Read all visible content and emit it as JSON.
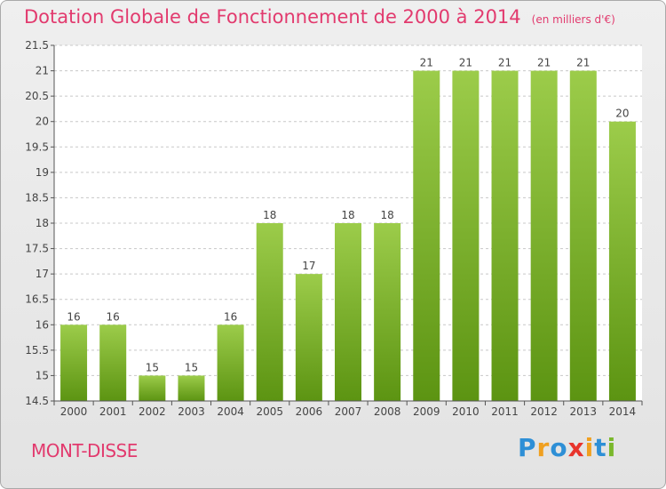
{
  "chart_data": {
    "type": "bar",
    "title": "Dotation Globale de Fonctionnement de 2000 à 2014",
    "subtitle": "(en milliers d'€)",
    "categories": [
      "2000",
      "2001",
      "2002",
      "2003",
      "2004",
      "2005",
      "2006",
      "2007",
      "2008",
      "2009",
      "2010",
      "2011",
      "2012",
      "2013",
      "2014"
    ],
    "values": [
      16,
      16,
      15,
      15,
      16,
      18,
      17,
      18,
      18,
      21,
      21,
      21,
      21,
      21,
      20
    ],
    "data_labels": [
      "16",
      "16",
      "15",
      "15",
      "16",
      "18",
      "17",
      "18",
      "18",
      "21",
      "21",
      "21",
      "21",
      "21",
      "20"
    ],
    "ylim": [
      14.5,
      21.5
    ],
    "yticks": [
      14.5,
      15,
      15.5,
      16,
      16.5,
      17,
      17.5,
      18,
      18.5,
      19,
      19.5,
      20,
      20.5,
      21,
      21.5
    ],
    "ytick_labels": [
      "14.5",
      "15",
      "15.5",
      "16",
      "16.5",
      "17",
      "17.5",
      "18",
      "18.5",
      "19",
      "19.5",
      "20",
      "20.5",
      "21",
      "21.5"
    ],
    "xlabel": "",
    "ylabel": "",
    "grid": "horizontal dashed",
    "bar_color_top": "#9ccc4a",
    "bar_color_bottom": "#5c9412"
  },
  "footer": {
    "commune": "MONT-DISSE",
    "brand": [
      "P",
      "r",
      "o",
      "x",
      "i",
      "t",
      "i"
    ],
    "brand_colors": [
      "#2e8fd6",
      "#f0a020",
      "#2e8fd6",
      "#e8342c",
      "#f0a020",
      "#2e8fd6",
      "#7ab82c"
    ]
  },
  "colors": {
    "title": "#e23a6e",
    "axis": "#555555",
    "grid": "#c8c8c8"
  }
}
